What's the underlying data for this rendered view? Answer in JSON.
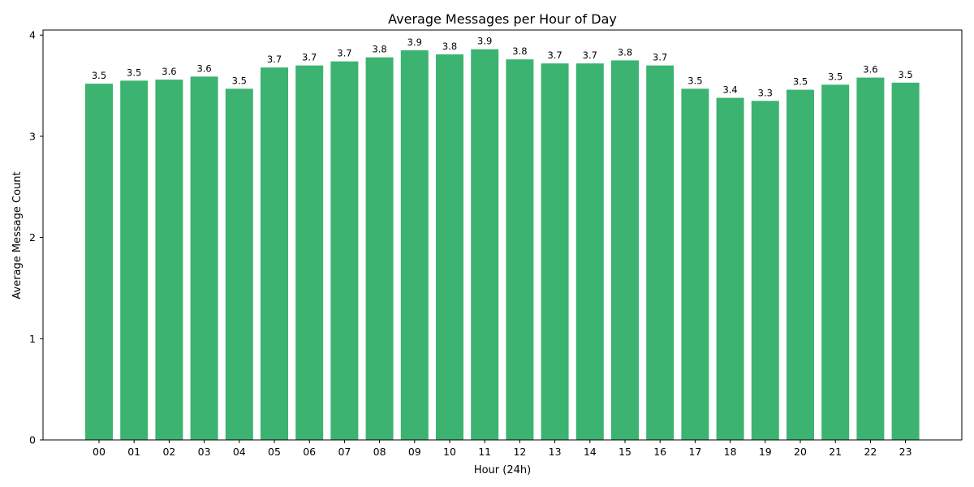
{
  "chart_data": {
    "type": "bar",
    "title": "Average Messages per Hour of Day",
    "xlabel": "Hour (24h)",
    "ylabel": "Average Message Count",
    "categories": [
      "00",
      "01",
      "02",
      "03",
      "04",
      "05",
      "06",
      "07",
      "08",
      "09",
      "10",
      "11",
      "12",
      "13",
      "14",
      "15",
      "16",
      "17",
      "18",
      "19",
      "20",
      "21",
      "22",
      "23"
    ],
    "values": [
      3.52,
      3.55,
      3.56,
      3.59,
      3.47,
      3.68,
      3.7,
      3.74,
      3.78,
      3.85,
      3.81,
      3.86,
      3.76,
      3.72,
      3.72,
      3.75,
      3.7,
      3.47,
      3.38,
      3.35,
      3.46,
      3.51,
      3.58,
      3.53
    ],
    "data_labels": [
      "3.5",
      "3.5",
      "3.6",
      "3.6",
      "3.5",
      "3.7",
      "3.7",
      "3.7",
      "3.8",
      "3.9",
      "3.8",
      "3.9",
      "3.8",
      "3.7",
      "3.7",
      "3.8",
      "3.7",
      "3.5",
      "3.4",
      "3.3",
      "3.5",
      "3.5",
      "3.6",
      "3.5"
    ],
    "ylim": [
      0,
      4.05
    ],
    "yticks": [
      0,
      1,
      2,
      3,
      4
    ],
    "grid": false,
    "bar_color": "#3cb371"
  }
}
